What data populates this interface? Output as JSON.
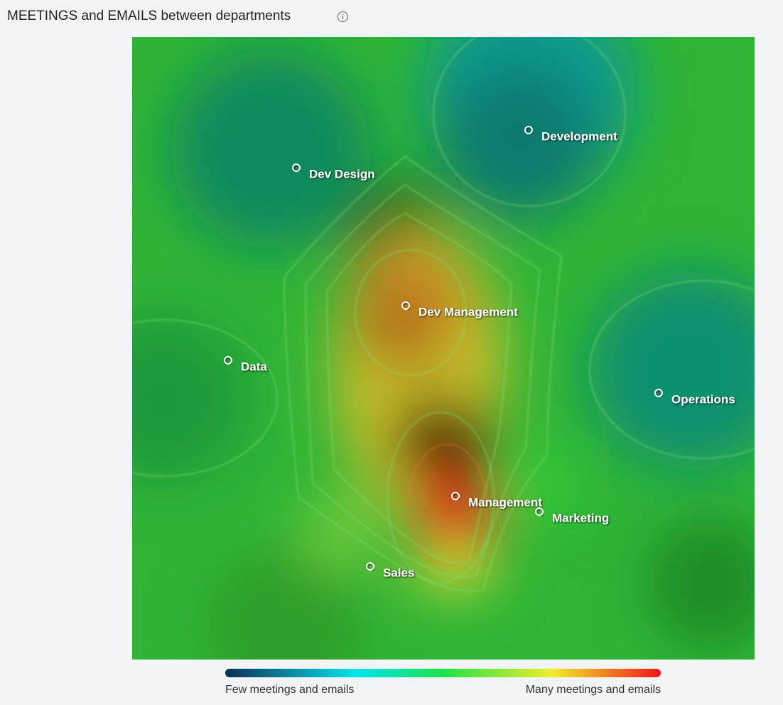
{
  "header": {
    "title": "MEETINGS and EMAILS between departments"
  },
  "nodes": [
    {
      "label": "Development"
    },
    {
      "label": "Dev Design"
    },
    {
      "label": "Dev Management"
    },
    {
      "label": "Data"
    },
    {
      "label": "Operations"
    },
    {
      "label": "Management"
    },
    {
      "label": "Marketing"
    },
    {
      "label": "Sales"
    }
  ],
  "legend": {
    "low": "Few meetings and emails",
    "high": "Many meetings and emails"
  }
}
